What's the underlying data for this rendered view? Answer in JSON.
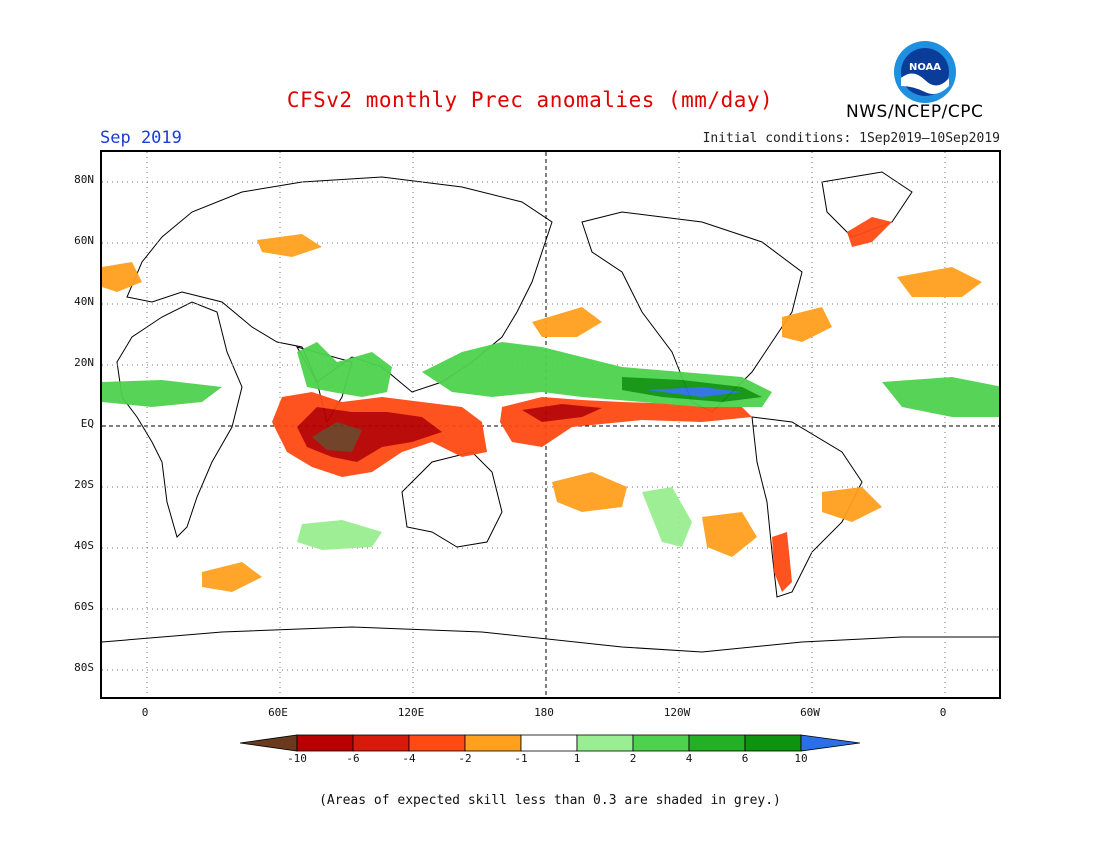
{
  "header": {
    "title": "CFSv2 monthly Prec anomalies (mm/day)",
    "month": "Sep 2019",
    "initial_conditions": "Initial conditions: 1Sep2019–10Sep2019",
    "agency": "NWS/NCEP/CPC",
    "logo_text": "NOAA"
  },
  "map": {
    "lat_labels": [
      "80N",
      "60N",
      "40N",
      "20N",
      "EQ",
      "20S",
      "40S",
      "60S",
      "80S"
    ],
    "lon_labels": [
      "0",
      "60E",
      "120E",
      "180",
      "120W",
      "60W",
      "0"
    ]
  },
  "colorbar": {
    "labels": [
      "-10",
      "-6",
      "-4",
      "-2",
      "-1",
      "1",
      "2",
      "4",
      "6",
      "10"
    ],
    "colors": [
      "#6b3a1e",
      "#b80000",
      "#d81a0a",
      "#ff4a14",
      "#ffa01e",
      "#ffffff",
      "#98ee90",
      "#4ed24e",
      "#24b024",
      "#0e930e",
      "#2b6fe6"
    ]
  },
  "note": "(Areas of expected skill less than 0.3 are shaded in grey.)",
  "colors": {
    "title": "#e00000",
    "month": "#1a3bd6"
  }
}
